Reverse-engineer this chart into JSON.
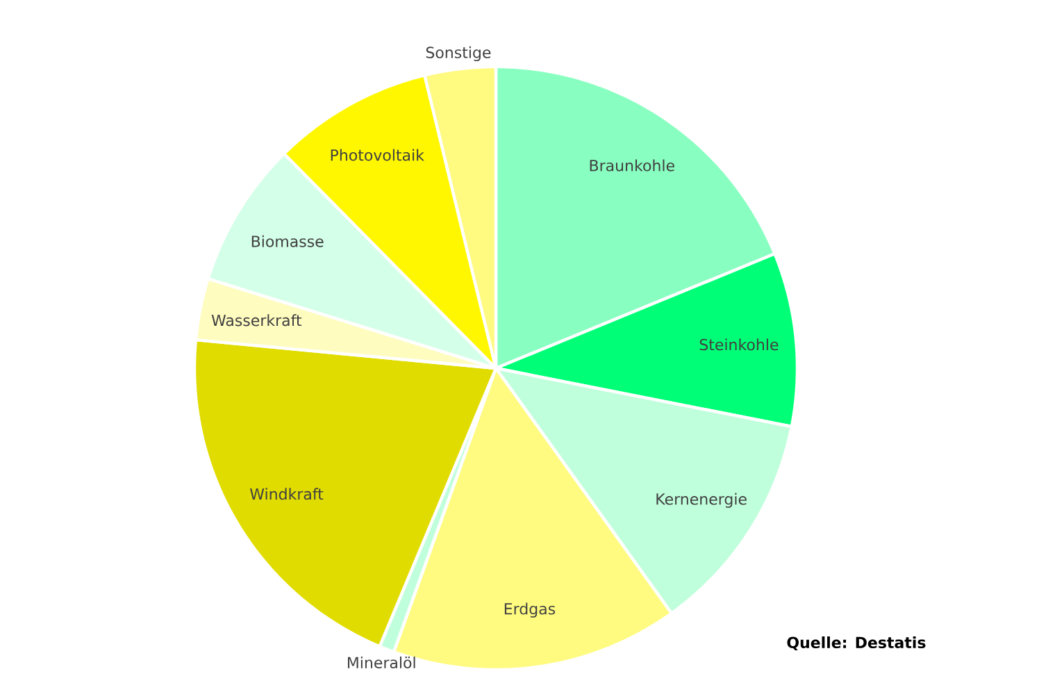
{
  "chart_data": {
    "type": "pie",
    "categories": [
      "Braunkohle",
      "Steinkohle",
      "Kernenergie",
      "Erdgas",
      "Mineralöl",
      "Windkraft",
      "Wasserkraft",
      "Biomasse",
      "Photovoltaik",
      "Sonstige"
    ],
    "values": [
      18.8,
      9.3,
      12.0,
      15.4,
      0.8,
      20.2,
      3.3,
      7.8,
      8.6,
      3.8
    ],
    "colors": [
      "#88ffc0",
      "#00ff77",
      "#c0ffdc",
      "#fffb80",
      "#c0ffdc",
      "#e1dc00",
      "#fffcc0",
      "#d4ffe8",
      "#fff700",
      "#fffa80"
    ],
    "annotations": [
      "Quelle: Destatis"
    ]
  }
}
